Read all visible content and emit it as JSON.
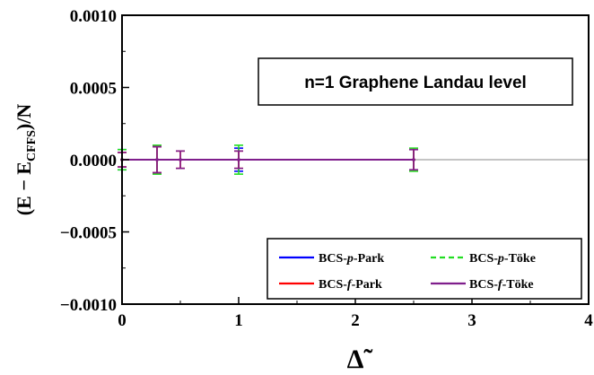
{
  "chart_data": {
    "type": "line",
    "title": "",
    "xlabel": "Δ̃",
    "ylabel": {
      "prefix": "(E − E",
      "subscript": "CFFS",
      "suffix": ")/N"
    },
    "xlim": [
      0,
      4
    ],
    "ylim": [
      -0.001,
      0.001
    ],
    "x_ticks": [
      0,
      1,
      2,
      3,
      4
    ],
    "y_ticks": [
      -0.001,
      -0.0005,
      0.0,
      0.0005,
      0.001
    ],
    "x_tick_labels": [
      "0",
      "1",
      "2",
      "3",
      "4"
    ],
    "y_tick_labels": [
      "−0.0010",
      "−0.0005",
      "0.0000",
      "0.0005",
      "0.0010"
    ],
    "grid": false,
    "zero_line": true,
    "annotation": "n=1 Graphene Landau level",
    "legend_position": "bottom-right",
    "series": [
      {
        "name_parts": [
          "BCS-",
          "p",
          "-Park"
        ],
        "color": "#0000ff",
        "dash": "solid",
        "x": [
          0,
          0.3,
          1,
          2.5
        ],
        "y": [
          0,
          0,
          0,
          0
        ],
        "err": [
          7e-05,
          9e-05,
          8e-05,
          7e-05
        ]
      },
      {
        "name_parts": [
          "BCS-",
          "p",
          "-Töke"
        ],
        "color": "#22dd22",
        "dash": "dashed",
        "x": [
          0,
          0.3,
          1,
          2.5
        ],
        "y": [
          0,
          0,
          0,
          0
        ],
        "err": [
          7e-05,
          0.0001,
          0.0001,
          8e-05
        ]
      },
      {
        "name_parts": [
          "BCS-",
          "f",
          "-Park"
        ],
        "color": "#ff0000",
        "dash": "solid",
        "x": [
          0,
          0.3,
          0.5,
          1,
          2.5
        ],
        "y": [
          0,
          0,
          0,
          0,
          0
        ],
        "err": [
          5e-05,
          9e-05,
          6e-05,
          6e-05,
          7e-05
        ]
      },
      {
        "name_parts": [
          "BCS-",
          "f",
          "-Töke"
        ],
        "color": "#7f1e8c",
        "dash": "solid",
        "x": [
          0,
          0.3,
          0.5,
          1,
          2.5
        ],
        "y": [
          0,
          0,
          0,
          0,
          0
        ],
        "err": [
          5e-05,
          9e-05,
          6e-05,
          6e-05,
          7e-05
        ]
      }
    ]
  }
}
